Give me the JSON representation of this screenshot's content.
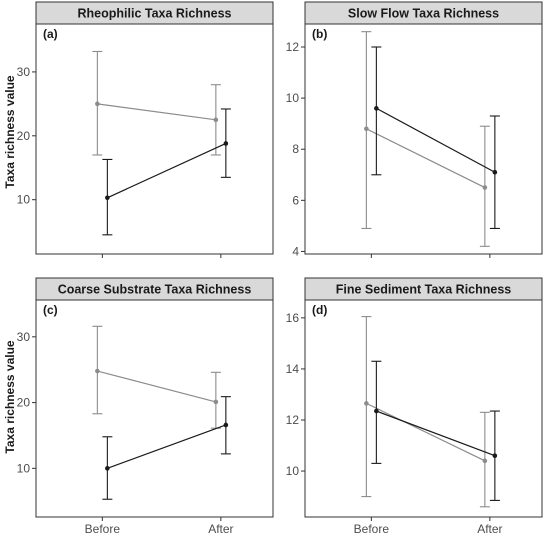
{
  "colors": {
    "before_series": "#8c8c8c",
    "after_series": "#1a1a1a",
    "strip_fill": "#d9d9d9",
    "panel_border": "#333333"
  },
  "y_axis_title": "Taxa richness value",
  "chart_data": [
    {
      "type": "line",
      "panel_tag": "(a)",
      "title": "Rheophilic Taxa Richness",
      "categories": [
        "Before",
        "After"
      ],
      "ylim": [
        1.5,
        37.5
      ],
      "yticks": [
        10,
        20,
        30
      ],
      "grid": false,
      "series": [
        {
          "color": "#8c8c8c",
          "values": [
            25.0,
            22.5
          ],
          "error_low": [
            17.0,
            17.0
          ],
          "error_high": [
            33.2,
            28.0
          ]
        },
        {
          "color": "#1a1a1a",
          "values": [
            10.3,
            18.8
          ],
          "error_low": [
            4.5,
            13.5
          ],
          "error_high": [
            16.3,
            24.2
          ]
        }
      ]
    },
    {
      "type": "line",
      "panel_tag": "(b)",
      "title": "Slow Flow Taxa Richness",
      "categories": [
        "Before",
        "After"
      ],
      "ylim": [
        3.9,
        12.9
      ],
      "yticks": [
        4,
        6,
        8,
        10,
        12
      ],
      "grid": false,
      "series": [
        {
          "color": "#8c8c8c",
          "values": [
            8.8,
            6.5
          ],
          "error_low": [
            4.9,
            4.2
          ],
          "error_high": [
            12.6,
            8.9
          ]
        },
        {
          "color": "#1a1a1a",
          "values": [
            9.6,
            7.1
          ],
          "error_low": [
            7.0,
            4.9
          ],
          "error_high": [
            12.0,
            9.3
          ]
        }
      ]
    },
    {
      "type": "line",
      "panel_tag": "(c)",
      "title": "Coarse Substrate Taxa Richness",
      "categories": [
        "Before",
        "After"
      ],
      "ylim": [
        2.6,
        35.6
      ],
      "yticks": [
        10,
        20,
        30
      ],
      "grid": false,
      "series": [
        {
          "color": "#8c8c8c",
          "values": [
            24.8,
            20.1
          ],
          "error_low": [
            18.3,
            16.1
          ],
          "error_high": [
            31.6,
            24.6
          ]
        },
        {
          "color": "#1a1a1a",
          "values": [
            10.0,
            16.6
          ],
          "error_low": [
            5.3,
            12.2
          ],
          "error_high": [
            14.8,
            20.9
          ]
        }
      ]
    },
    {
      "type": "line",
      "panel_tag": "(d)",
      "title": "Fine Sediment Taxa Richness",
      "categories": [
        "Before",
        "After"
      ],
      "ylim": [
        8.2,
        16.7
      ],
      "yticks": [
        10,
        12,
        14,
        16
      ],
      "grid": false,
      "series": [
        {
          "color": "#8c8c8c",
          "values": [
            12.65,
            10.4
          ],
          "error_low": [
            9.0,
            8.6
          ],
          "error_high": [
            16.05,
            12.3
          ]
        },
        {
          "color": "#1a1a1a",
          "values": [
            12.35,
            10.6
          ],
          "error_low": [
            10.3,
            8.85
          ],
          "error_high": [
            14.3,
            12.35
          ]
        }
      ]
    }
  ]
}
